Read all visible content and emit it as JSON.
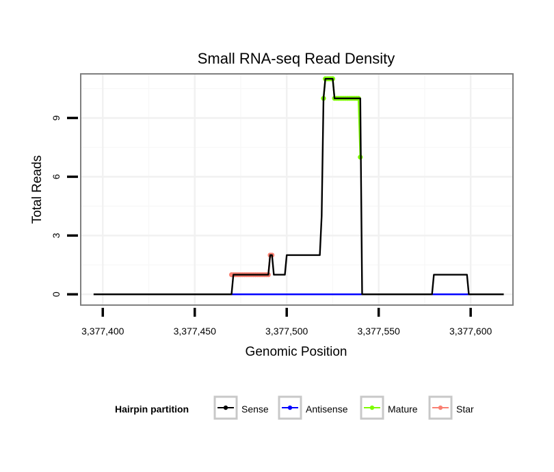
{
  "chart_data": {
    "type": "line",
    "title": "Small RNA-seq Read Density",
    "xlabel": "Genomic Position",
    "ylabel": "Total Reads",
    "xlim": [
      3377388,
      3377623
    ],
    "ylim": [
      -0.55,
      11.25
    ],
    "x_ticks": [
      3377400,
      3377450,
      3377500,
      3377550,
      3377600
    ],
    "x_tick_labels": [
      "3,377,400",
      "3,377,450",
      "3,377,500",
      "3,377,550",
      "3,377,600"
    ],
    "y_ticks": [
      0,
      3,
      6,
      9
    ],
    "y_tick_labels": [
      "0",
      "3",
      "6",
      "9"
    ],
    "grid": true,
    "legend": {
      "title": "Hairpin partition",
      "position": "bottom",
      "entries": [
        {
          "name": "Sense",
          "color": "#000000"
        },
        {
          "name": "Antisense",
          "color": "#0000ff"
        },
        {
          "name": "Mature",
          "color": "#7cfc00"
        },
        {
          "name": "Star",
          "color": "#fa8072"
        }
      ]
    },
    "series": [
      {
        "name": "Sense",
        "color": "#000000",
        "markers": false,
        "x": [
          3377395,
          3377470,
          3377471,
          3377490,
          3377491,
          3377492,
          3377493,
          3377499,
          3377500,
          3377518,
          3377519,
          3377520,
          3377521,
          3377525,
          3377526,
          3377540,
          3377541,
          3377579,
          3377580,
          3377598,
          3377599,
          3377618
        ],
        "y": [
          0,
          0,
          1,
          1,
          2,
          2,
          1,
          1,
          2,
          2,
          4,
          10,
          11,
          11,
          10,
          10,
          0,
          0,
          1,
          1,
          0,
          0
        ]
      },
      {
        "name": "Antisense",
        "color": "#0000ff",
        "markers": false,
        "x": [
          3377470,
          3377600
        ],
        "y": [
          0,
          0
        ]
      },
      {
        "name": "Mature",
        "color": "#7cfc00",
        "markers": true,
        "x": [
          3377520,
          3377521,
          3377522,
          3377523,
          3377524,
          3377525,
          3377526,
          3377527,
          3377528,
          3377529,
          3377530,
          3377531,
          3377532,
          3377533,
          3377534,
          3377535,
          3377536,
          3377537,
          3377538,
          3377539,
          3377540
        ],
        "y": [
          10,
          11,
          11,
          11,
          11,
          11,
          10,
          10,
          10,
          10,
          10,
          10,
          10,
          10,
          10,
          10,
          10,
          10,
          10,
          10,
          7
        ]
      },
      {
        "name": "Star",
        "color": "#fa8072",
        "markers": true,
        "x": [
          3377470,
          3377471,
          3377472,
          3377473,
          3377474,
          3377475,
          3377476,
          3377477,
          3377478,
          3377479,
          3377480,
          3377481,
          3377482,
          3377483,
          3377484,
          3377485,
          3377486,
          3377487,
          3377488,
          3377489,
          3377490,
          3377491,
          3377492
        ],
        "y": [
          1,
          1,
          1,
          1,
          1,
          1,
          1,
          1,
          1,
          1,
          1,
          1,
          1,
          1,
          1,
          1,
          1,
          1,
          1,
          1,
          1,
          2,
          2
        ]
      }
    ]
  }
}
